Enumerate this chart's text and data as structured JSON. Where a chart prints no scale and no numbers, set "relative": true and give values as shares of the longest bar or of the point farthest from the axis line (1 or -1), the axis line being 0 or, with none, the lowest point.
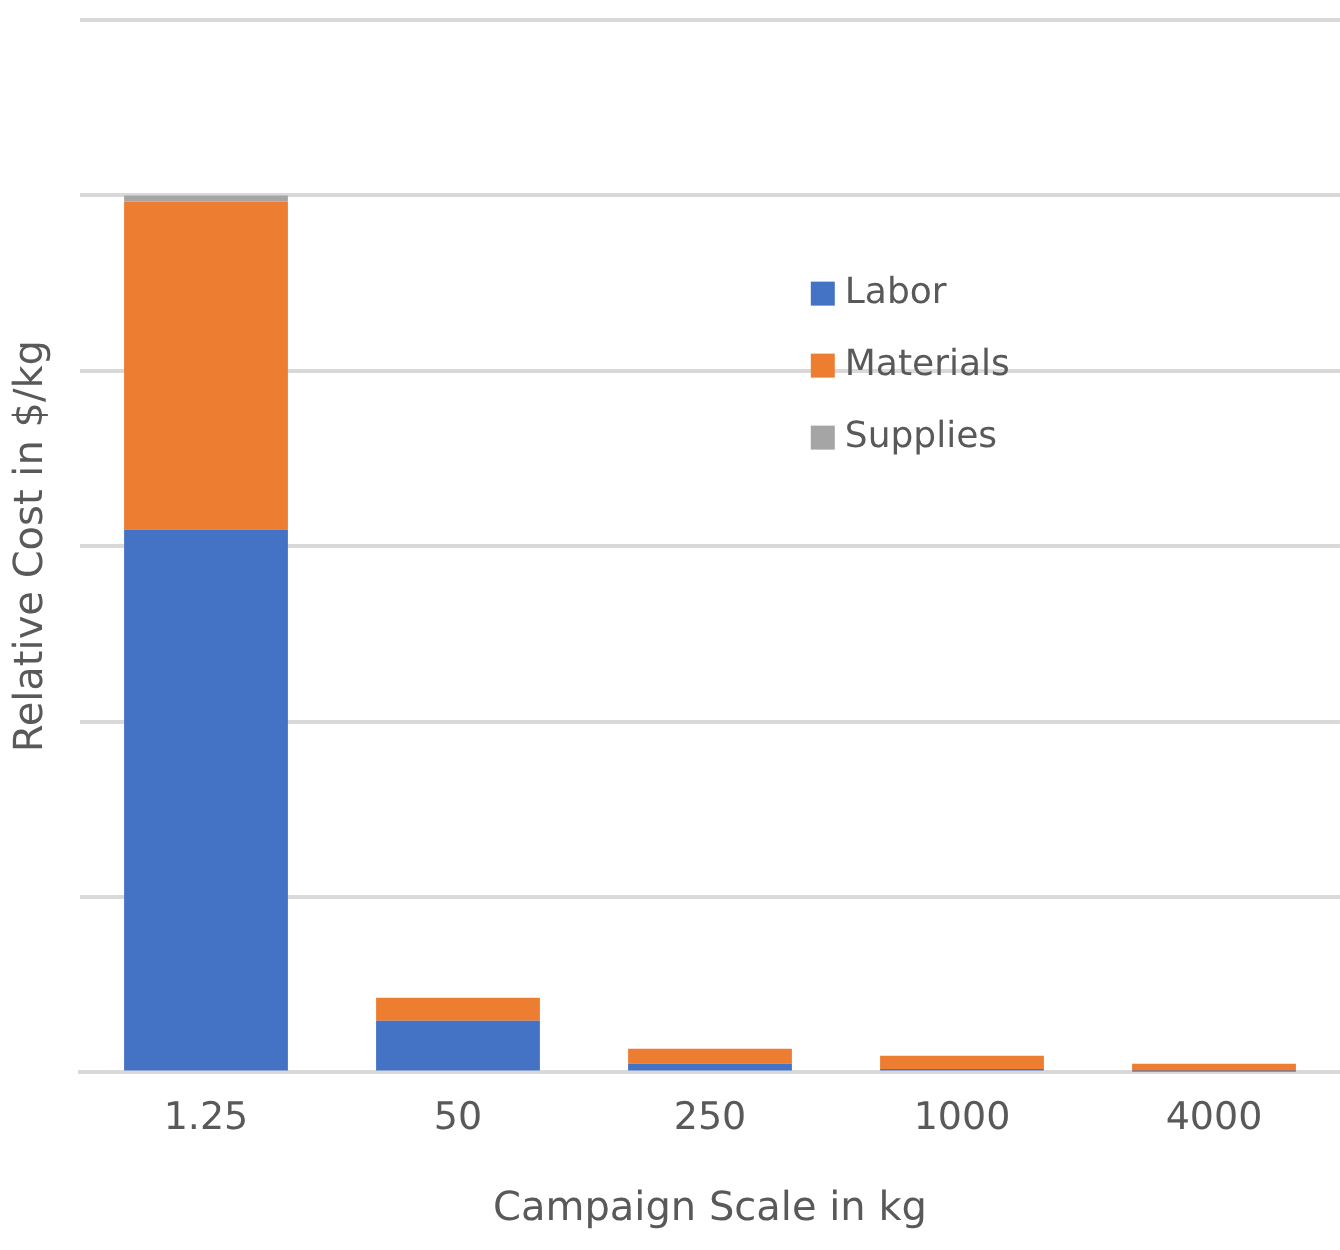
{
  "chart_data": {
    "type": "bar",
    "stacked": true,
    "relative": true,
    "xlabel": "Campaign Scale in kg",
    "ylabel": "Relative Cost in $/kg",
    "categories": [
      "1.25",
      "50",
      "250",
      "1000",
      "4000"
    ],
    "series": [
      {
        "name": "Labor",
        "color": "#4472c4",
        "values": [
          0.619,
          0.059,
          0.01,
          0.004,
          0.001
        ]
      },
      {
        "name": "Materials",
        "color": "#ed7d31",
        "values": [
          0.374,
          0.026,
          0.017,
          0.015,
          0.009
        ]
      },
      {
        "name": "Supplies",
        "color": "#a5a5a5",
        "values": [
          0.007,
          null,
          null,
          null,
          null
        ]
      }
    ],
    "grid": "y",
    "legend": "right"
  }
}
